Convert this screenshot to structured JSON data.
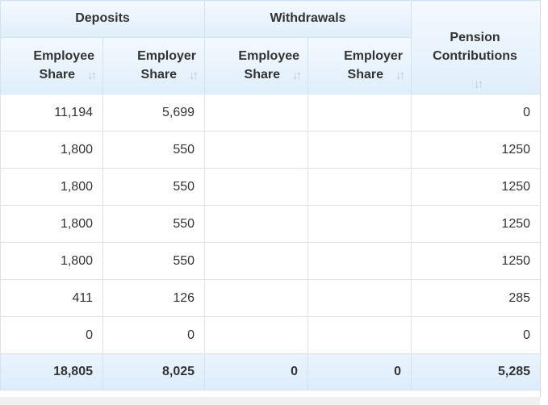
{
  "groups": {
    "deposits": "Deposits",
    "withdrawals": "Withdrawals"
  },
  "columns": {
    "emp_line1": "Employee",
    "emp_line2": "Share",
    "er_line1": "Employer",
    "er_line2": "Share",
    "pension_line1": "Pension",
    "pension_line2": "Contributions",
    "sort_icon": "sort-icon"
  },
  "rows": [
    {
      "dep_emp": "11,194",
      "dep_er": "5,699",
      "wd_emp": "",
      "wd_er": "",
      "pension": "0"
    },
    {
      "dep_emp": "1,800",
      "dep_er": "550",
      "wd_emp": "",
      "wd_er": "",
      "pension": "1250"
    },
    {
      "dep_emp": "1,800",
      "dep_er": "550",
      "wd_emp": "",
      "wd_er": "",
      "pension": "1250"
    },
    {
      "dep_emp": "1,800",
      "dep_er": "550",
      "wd_emp": "",
      "wd_er": "",
      "pension": "1250"
    },
    {
      "dep_emp": "1,800",
      "dep_er": "550",
      "wd_emp": "",
      "wd_er": "",
      "pension": "1250"
    },
    {
      "dep_emp": "411",
      "dep_er": "126",
      "wd_emp": "",
      "wd_er": "",
      "pension": "285"
    },
    {
      "dep_emp": "0",
      "dep_er": "0",
      "wd_emp": "",
      "wd_er": "",
      "pension": "0"
    }
  ],
  "totals": {
    "dep_emp": "18,805",
    "dep_er": "8,025",
    "wd_emp": "0",
    "wd_er": "0",
    "pension": "5,285"
  }
}
